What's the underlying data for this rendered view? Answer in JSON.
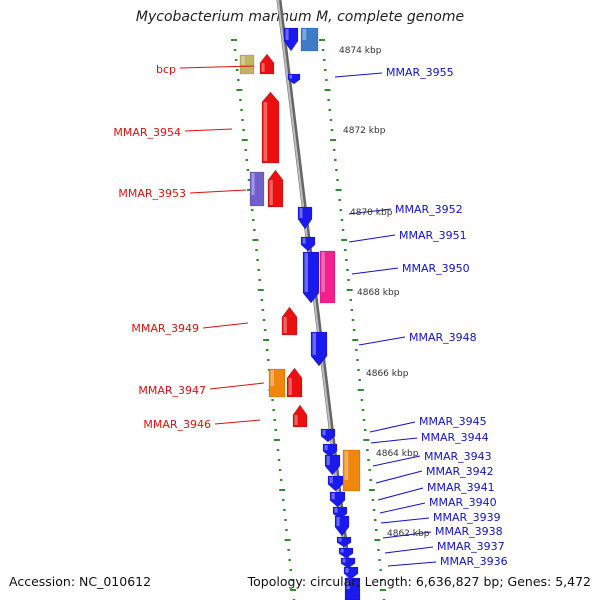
{
  "title": "Mycobacterium marinum M, complete genome",
  "accession": "Accession: NC_010612",
  "summary": "Topology: circular; Length: 6,636,827 bp; Genes: 5,472",
  "colors": {
    "backbone": "#8c8c8c",
    "tick": "#2f8f2f",
    "forward_label": "#dd1111",
    "reverse_label": "#1111cc",
    "blue": "#1a1aee",
    "red": "#e81010",
    "steelblue": "#3d7cc8",
    "khaki": "#c0b468",
    "purple": "#7060cc",
    "pink": "#f0208c",
    "orange": "#f0860a"
  },
  "scale_labels": [
    "4874 kbp",
    "4872 kbp",
    "4870 kbp",
    "4868 kbp",
    "4866 kbp",
    "4864 kbp",
    "4862 kbp"
  ],
  "forward_genes": [
    "bcp",
    "MMAR_3954",
    "MMAR_3953",
    "MMAR_3949",
    "MMAR_3947",
    "MMAR_3946"
  ],
  "reverse_genes": [
    "MMAR_3955",
    "MMAR_3952",
    "MMAR_3951",
    "MMAR_3950",
    "MMAR_3948",
    "MMAR_3945",
    "MMAR_3944",
    "MMAR_3943",
    "MMAR_3942",
    "MMAR_3941",
    "MMAR_3940",
    "MMAR_3939",
    "MMAR_3938",
    "MMAR_3937",
    "MMAR_3936"
  ]
}
